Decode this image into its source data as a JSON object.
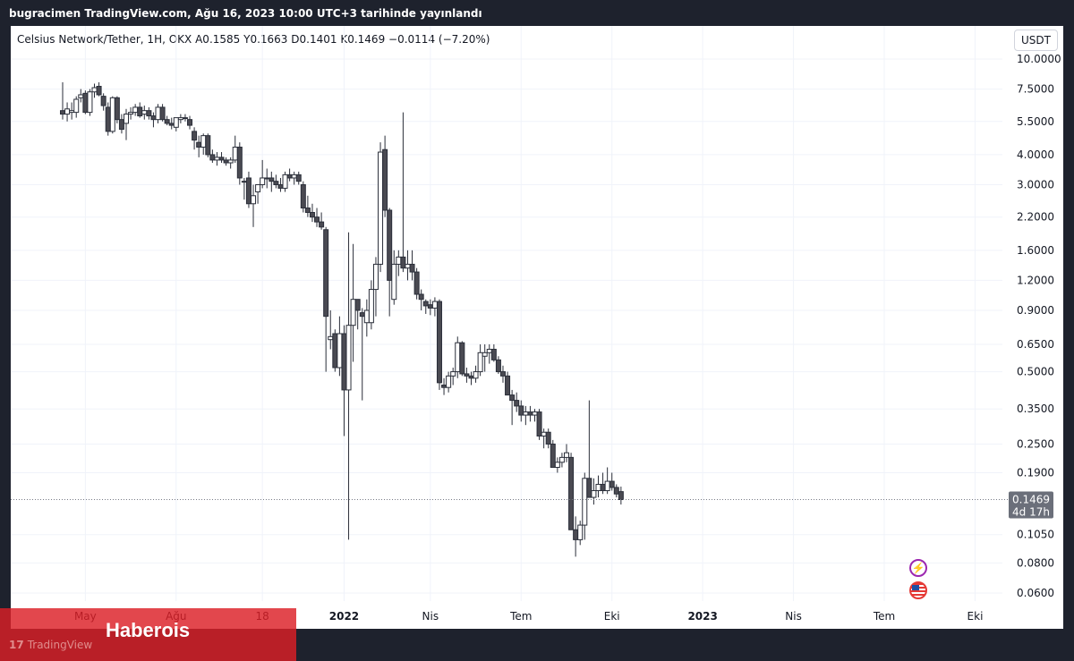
{
  "header": {
    "published_by": "bugracimen TradingView.com, Ağu 16, 2023 10:00 UTC+3 tarihinde yayınlandı"
  },
  "legend": {
    "symbol": "Celsius Network/Tether, 1H, OKX",
    "open": "A0.1585",
    "high": "Y0.1663",
    "low": "D0.1401",
    "close": "K0.1469",
    "change": "−0.0114 (−7.20%)"
  },
  "currency": "USDT",
  "price_tag": {
    "value": "0.1469",
    "countdown": "4d 17h"
  },
  "icons": {
    "flash": "flash-icon",
    "flag": "us-flag-icon"
  },
  "brand": {
    "watermark": "Haberois",
    "tv_logo": "TradingView"
  },
  "colors": {
    "up_body": "#ffffff",
    "down_body": "#4a4a52",
    "wick": "#2a2e39",
    "tag_bg": "#6b6f7a",
    "watermark_bg": "#dc1e26"
  },
  "chart_data": {
    "type": "candlestick",
    "scale": "log",
    "y_ticks": [
      10.0,
      7.5,
      5.5,
      4.0,
      3.0,
      2.2,
      1.6,
      1.2,
      0.9,
      0.65,
      0.5,
      0.35,
      0.25,
      0.19,
      0.105,
      0.08,
      0.06
    ],
    "y_tick_labels": [
      "10.0000",
      "7.5000",
      "5.5000",
      "4.0000",
      "3.0000",
      "2.2000",
      "1.6000",
      "1.2000",
      "0.9000",
      "0.6500",
      "0.5000",
      "0.3500",
      "0.2500",
      "0.1900",
      "0.1050",
      "0.0800",
      "0.0600"
    ],
    "x_labels": [
      {
        "label": "May",
        "i": 5,
        "bold": false
      },
      {
        "label": "Ağu",
        "i": 25,
        "bold": false
      },
      {
        "label": "18",
        "i": 44,
        "bold": false
      },
      {
        "label": "2022",
        "i": 62,
        "bold": true
      },
      {
        "label": "Nis",
        "i": 81,
        "bold": false
      },
      {
        "label": "Tem",
        "i": 101,
        "bold": false
      },
      {
        "label": "Eki",
        "i": 121,
        "bold": false
      },
      {
        "label": "2023",
        "i": 141,
        "bold": true
      },
      {
        "label": "Nis",
        "i": 161,
        "bold": false
      },
      {
        "label": "Tem",
        "i": 181,
        "bold": false
      },
      {
        "label": "Eki",
        "i": 201,
        "bold": false
      }
    ],
    "last_price": 0.1469,
    "candles": [
      [
        6.1,
        8.0,
        5.6,
        5.9
      ],
      [
        5.9,
        6.6,
        5.5,
        6.2
      ],
      [
        6.0,
        6.6,
        5.6,
        6.1
      ],
      [
        6.0,
        7.0,
        5.7,
        6.8
      ],
      [
        6.9,
        7.5,
        6.6,
        7.1
      ],
      [
        7.2,
        7.4,
        5.9,
        6.0
      ],
      [
        6.0,
        7.5,
        5.8,
        7.3
      ],
      [
        7.3,
        7.9,
        6.9,
        7.6
      ],
      [
        7.7,
        8.0,
        7.0,
        7.1
      ],
      [
        7.0,
        7.2,
        6.1,
        6.4
      ],
      [
        6.3,
        6.6,
        4.8,
        5.0
      ],
      [
        5.0,
        7.0,
        4.9,
        6.9
      ],
      [
        6.9,
        7.0,
        5.4,
        5.6
      ],
      [
        5.6,
        5.9,
        4.9,
        5.1
      ],
      [
        5.4,
        6.2,
        4.6,
        5.9
      ],
      [
        5.9,
        6.3,
        5.6,
        6.0
      ],
      [
        6.0,
        6.5,
        5.8,
        6.3
      ],
      [
        6.3,
        6.6,
        5.7,
        5.8
      ],
      [
        5.9,
        6.4,
        5.6,
        6.1
      ],
      [
        6.1,
        6.3,
        5.6,
        5.8
      ],
      [
        5.8,
        6.0,
        5.2,
        5.6
      ],
      [
        5.6,
        6.5,
        5.4,
        6.3
      ],
      [
        6.3,
        6.5,
        5.5,
        5.6
      ],
      [
        5.6,
        5.8,
        5.3,
        5.4
      ],
      [
        5.4,
        5.7,
        5.1,
        5.3
      ],
      [
        5.2,
        5.7,
        5.0,
        5.7
      ],
      [
        5.6,
        5.9,
        5.4,
        5.7
      ],
      [
        5.7,
        5.9,
        5.5,
        5.7
      ],
      [
        5.6,
        5.8,
        5.1,
        5.3
      ],
      [
        5.0,
        5.2,
        4.2,
        4.6
      ],
      [
        4.5,
        4.8,
        3.9,
        4.3
      ],
      [
        4.3,
        4.9,
        4.0,
        4.8
      ],
      [
        4.8,
        4.9,
        3.9,
        4.0
      ],
      [
        4.0,
        4.2,
        3.7,
        3.8
      ],
      [
        3.8,
        4.1,
        3.6,
        3.9
      ],
      [
        3.9,
        4.1,
        3.7,
        3.8
      ],
      [
        3.8,
        3.9,
        3.6,
        3.7
      ],
      [
        3.7,
        3.9,
        3.5,
        3.8
      ],
      [
        3.8,
        4.8,
        3.7,
        4.3
      ],
      [
        4.3,
        4.5,
        3.0,
        3.2
      ],
      [
        3.1,
        3.2,
        2.6,
        3.1
      ],
      [
        3.2,
        3.4,
        2.4,
        2.5
      ],
      [
        2.5,
        3.0,
        2.0,
        2.7
      ],
      [
        2.8,
        3.0,
        2.5,
        3.0
      ],
      [
        3.0,
        3.8,
        2.9,
        3.2
      ],
      [
        3.2,
        3.5,
        2.9,
        3.2
      ],
      [
        3.2,
        3.4,
        2.8,
        3.1
      ],
      [
        3.1,
        3.3,
        2.9,
        3.0
      ],
      [
        3.0,
        3.2,
        2.8,
        2.9
      ],
      [
        2.9,
        3.4,
        2.8,
        3.3
      ],
      [
        3.3,
        3.5,
        3.1,
        3.2
      ],
      [
        3.2,
        3.4,
        3.0,
        3.3
      ],
      [
        3.3,
        3.4,
        3.0,
        3.1
      ],
      [
        3.0,
        3.1,
        2.3,
        2.4
      ],
      [
        2.4,
        2.7,
        2.2,
        2.3
      ],
      [
        2.3,
        2.5,
        2.1,
        2.2
      ],
      [
        2.2,
        2.4,
        2.0,
        2.1
      ],
      [
        2.1,
        2.3,
        1.95,
        2.0
      ],
      [
        1.95,
        2.0,
        0.5,
        0.85
      ],
      [
        0.68,
        0.9,
        0.62,
        0.7
      ],
      [
        0.72,
        0.75,
        0.5,
        0.52
      ],
      [
        0.52,
        0.85,
        0.48,
        0.72
      ],
      [
        0.72,
        0.78,
        0.27,
        0.42
      ],
      [
        0.42,
        1.9,
        0.1,
        0.78
      ],
      [
        0.78,
        1.7,
        0.55,
        1.0
      ],
      [
        1.0,
        1.0,
        0.75,
        0.9
      ],
      [
        0.88,
        0.92,
        0.38,
        0.85
      ],
      [
        0.8,
        1.0,
        0.7,
        0.9
      ],
      [
        0.8,
        1.2,
        0.75,
        1.1
      ],
      [
        1.1,
        1.5,
        0.85,
        1.4
      ],
      [
        1.4,
        4.5,
        1.3,
        4.1
      ],
      [
        4.2,
        4.8,
        2.2,
        2.35
      ],
      [
        2.35,
        2.4,
        0.85,
        1.2
      ],
      [
        1.0,
        1.6,
        0.95,
        1.4
      ],
      [
        1.4,
        1.6,
        1.25,
        1.5
      ],
      [
        1.5,
        6.0,
        1.3,
        1.35
      ],
      [
        1.35,
        1.6,
        1.2,
        1.4
      ],
      [
        1.4,
        1.6,
        1.2,
        1.3
      ],
      [
        1.3,
        1.35,
        1.0,
        1.05
      ],
      [
        1.05,
        1.1,
        0.9,
        1.0
      ],
      [
        0.98,
        1.0,
        0.87,
        0.94
      ],
      [
        0.95,
        1.0,
        0.86,
        0.92
      ],
      [
        0.92,
        1.02,
        0.85,
        0.98
      ],
      [
        0.98,
        1.0,
        0.42,
        0.45
      ],
      [
        0.44,
        0.47,
        0.4,
        0.43
      ],
      [
        0.43,
        0.5,
        0.41,
        0.48
      ],
      [
        0.48,
        0.52,
        0.44,
        0.5
      ],
      [
        0.5,
        0.7,
        0.47,
        0.66
      ],
      [
        0.66,
        0.67,
        0.48,
        0.49
      ],
      [
        0.49,
        0.52,
        0.45,
        0.48
      ],
      [
        0.48,
        0.5,
        0.44,
        0.47
      ],
      [
        0.47,
        0.53,
        0.45,
        0.5
      ],
      [
        0.5,
        0.65,
        0.48,
        0.6
      ],
      [
        0.58,
        0.65,
        0.5,
        0.6
      ],
      [
        0.6,
        0.65,
        0.54,
        0.62
      ],
      [
        0.62,
        0.65,
        0.55,
        0.56
      ],
      [
        0.56,
        0.58,
        0.49,
        0.5
      ],
      [
        0.5,
        0.53,
        0.45,
        0.48
      ],
      [
        0.48,
        0.5,
        0.4,
        0.4
      ],
      [
        0.4,
        0.42,
        0.3,
        0.38
      ],
      [
        0.38,
        0.41,
        0.34,
        0.36
      ],
      [
        0.36,
        0.38,
        0.31,
        0.33
      ],
      [
        0.33,
        0.36,
        0.3,
        0.34
      ],
      [
        0.34,
        0.36,
        0.31,
        0.33
      ],
      [
        0.33,
        0.35,
        0.31,
        0.34
      ],
      [
        0.34,
        0.35,
        0.26,
        0.27
      ],
      [
        0.27,
        0.29,
        0.24,
        0.28
      ],
      [
        0.28,
        0.29,
        0.24,
        0.25
      ],
      [
        0.25,
        0.26,
        0.2,
        0.2
      ],
      [
        0.2,
        0.22,
        0.19,
        0.21
      ],
      [
        0.21,
        0.23,
        0.2,
        0.22
      ],
      [
        0.22,
        0.25,
        0.21,
        0.23
      ],
      [
        0.22,
        0.23,
        0.11,
        0.11
      ],
      [
        0.11,
        0.125,
        0.085,
        0.1
      ],
      [
        0.1,
        0.12,
        0.095,
        0.115
      ],
      [
        0.115,
        0.19,
        0.1,
        0.18
      ],
      [
        0.18,
        0.38,
        0.16,
        0.15
      ],
      [
        0.15,
        0.18,
        0.14,
        0.16
      ],
      [
        0.16,
        0.185,
        0.15,
        0.17
      ],
      [
        0.17,
        0.19,
        0.155,
        0.16
      ],
      [
        0.16,
        0.2,
        0.155,
        0.175
      ],
      [
        0.175,
        0.19,
        0.16,
        0.165
      ],
      [
        0.165,
        0.17,
        0.15,
        0.155
      ],
      [
        0.1585,
        0.1663,
        0.1401,
        0.1469
      ]
    ]
  }
}
